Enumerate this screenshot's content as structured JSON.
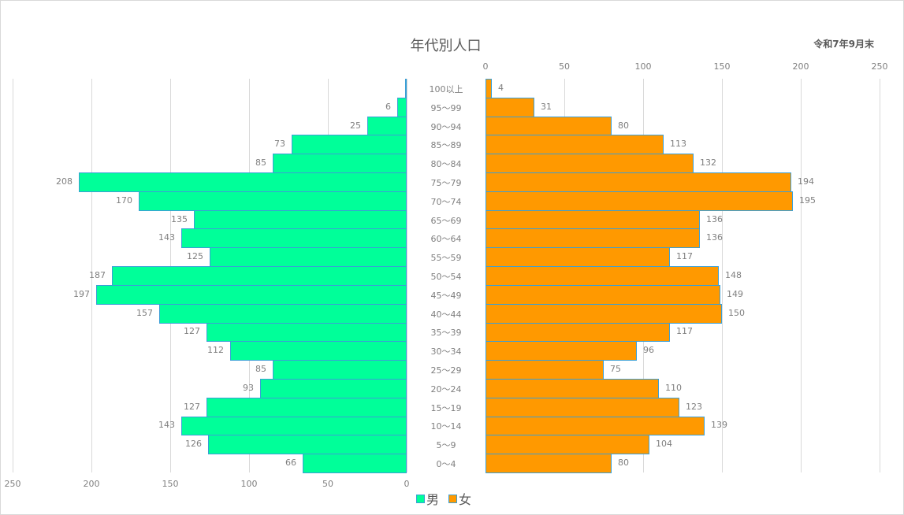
{
  "chart_data": {
    "type": "bar",
    "orientation": "horizontal",
    "subtype": "population-pyramid",
    "title": "年代別人口",
    "subtitle": "令和7年9月末",
    "categories": [
      "100以上",
      "95～99",
      "90～94",
      "85～89",
      "80～84",
      "75～79",
      "70～74",
      "65～69",
      "60～64",
      "55～59",
      "50～54",
      "45～49",
      "40～44",
      "35～39",
      "30～34",
      "25～29",
      "20～24",
      "15～19",
      "10～14",
      "5～9",
      "0～4"
    ],
    "series": [
      {
        "name": "男",
        "color": "#00ff99",
        "side": "left",
        "values": [
          1,
          6,
          25,
          73,
          85,
          208,
          170,
          135,
          143,
          125,
          187,
          197,
          157,
          127,
          112,
          85,
          93,
          127,
          143,
          126,
          66
        ],
        "labels": [
          "",
          "6",
          "25",
          "73",
          "85",
          "208",
          "170",
          "135",
          "143",
          "125",
          "187",
          "197",
          "157",
          "127",
          "112",
          "85",
          "93",
          "127",
          "143",
          "126",
          "66"
        ]
      },
      {
        "name": "女",
        "color": "#ff9900",
        "side": "right",
        "values": [
          4,
          31,
          80,
          113,
          132,
          194,
          195,
          136,
          136,
          117,
          148,
          149,
          150,
          117,
          96,
          75,
          110,
          123,
          139,
          104,
          80
        ],
        "labels": [
          "4",
          "31",
          "80",
          "113",
          "132",
          "194",
          "195",
          "136",
          "136",
          "117",
          "148",
          "149",
          "150",
          "117",
          "96",
          "75",
          "110",
          "123",
          "139",
          "104",
          "80"
        ]
      }
    ],
    "left_axis": {
      "ticks": [
        "250",
        "200",
        "150",
        "100",
        "50",
        "0"
      ],
      "range": [
        250,
        0
      ],
      "position": "bottom"
    },
    "right_axis": {
      "ticks": [
        "0",
        "50",
        "100",
        "150",
        "200",
        "250"
      ],
      "range": [
        0,
        250
      ],
      "position": "top"
    },
    "grid": true,
    "legend": {
      "position": "bottom",
      "entries": [
        "男",
        "女"
      ]
    }
  },
  "header": {
    "title": "年代別人口",
    "date": "令和7年9月末"
  },
  "legend": {
    "male": "男",
    "female": "女"
  }
}
